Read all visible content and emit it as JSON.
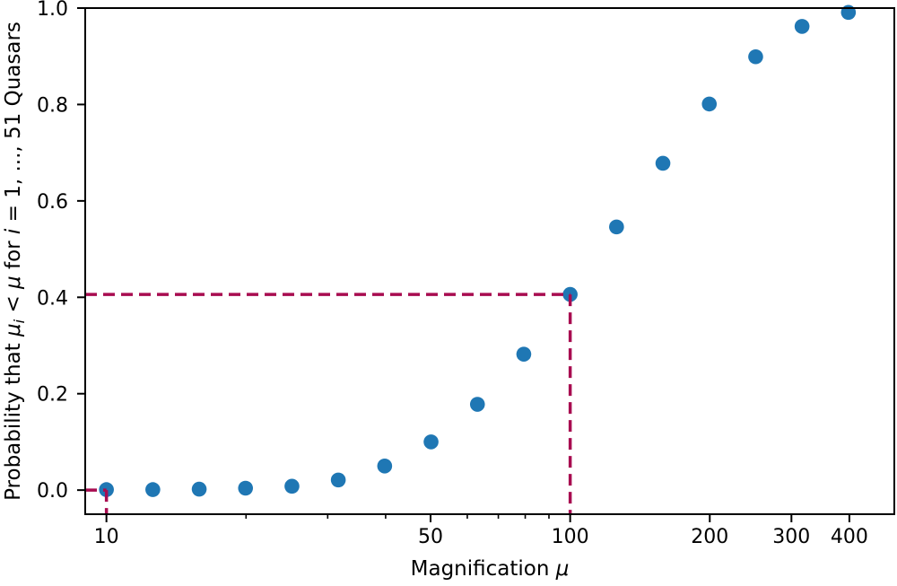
{
  "figure": {
    "background_color": "#ffffff",
    "axis_color": "#000000",
    "point_color": "#1f77b4",
    "dash_color": "#a80c50"
  },
  "chart_data": {
    "type": "scatter",
    "title": "",
    "xlabel": "Magnification μ",
    "ylabel": "Probability that μᵢ < μ for i = 1, ..., 51 Quasars",
    "xlabel_parts": [
      {
        "text": "Magnification ",
        "italic": false
      },
      {
        "text": "μ",
        "italic": true
      }
    ],
    "ylabel_parts": [
      {
        "text": "Probability that ",
        "italic": false
      },
      {
        "text": "μ",
        "italic": true
      },
      {
        "text": "i",
        "italic": true,
        "sub": true
      },
      {
        "text": " < ",
        "italic": false
      },
      {
        "text": "μ",
        "italic": true
      },
      {
        "text": " for ",
        "italic": false
      },
      {
        "text": "i",
        "italic": true
      },
      {
        "text": " = 1, ..., 51 Quasars",
        "italic": false
      }
    ],
    "xscale": "log",
    "yscale": "linear",
    "xlim": [
      9,
      500
    ],
    "ylim": [
      -0.05,
      1.0
    ],
    "grid": false,
    "legend": null,
    "x": [
      10,
      12.59,
      15.85,
      19.95,
      25.12,
      31.62,
      39.81,
      50.12,
      63.1,
      79.43,
      100,
      125.89,
      158.49,
      199.53,
      251.19,
      316.23,
      398.11
    ],
    "y": [
      0.001,
      0.001,
      0.002,
      0.004,
      0.008,
      0.021,
      0.05,
      0.1,
      0.178,
      0.282,
      0.406,
      0.546,
      0.678,
      0.801,
      0.899,
      0.962,
      0.991
    ],
    "x_major_ticks": [
      10,
      50,
      100,
      200,
      300,
      400
    ],
    "x_major_tick_labels": [
      "10",
      "50",
      "100",
      "200",
      "300",
      "400"
    ],
    "x_minor_ticks": [
      20,
      30,
      40,
      60,
      70,
      80,
      90
    ],
    "y_ticks": [
      0.0,
      0.2,
      0.4,
      0.6,
      0.8,
      1.0
    ],
    "y_tick_labels": [
      "0.0",
      "0.2",
      "0.4",
      "0.6",
      "0.8",
      "1.0"
    ],
    "annotations": [
      {
        "type": "crosshair",
        "x": 10,
        "y": 0.0,
        "style": "dashed"
      },
      {
        "type": "crosshair",
        "x": 100,
        "y": 0.406,
        "style": "dashed"
      }
    ]
  }
}
